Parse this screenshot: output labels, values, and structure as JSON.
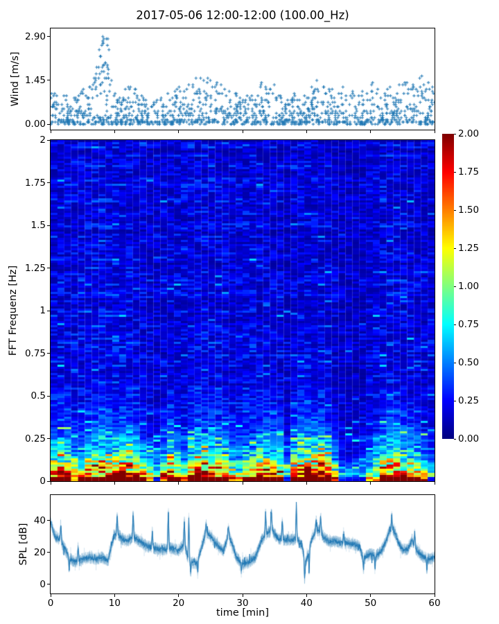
{
  "title": "2017-05-06 12:00-12:00 (100.00_Hz)",
  "colors": {
    "series": "#1f77b4",
    "background": "#ffffff",
    "axis": "#000000"
  },
  "chart_data": [
    {
      "type": "scatter",
      "name": "wind",
      "ylabel": "Wind [m/s]",
      "marker": "plus",
      "color": "#1f77b4",
      "xlim": [
        0,
        60
      ],
      "ylim": [
        -0.18,
        3.17
      ],
      "ytick_labels": [
        "2.90",
        "1.45",
        "0.00"
      ],
      "ytick_values": [
        2.9,
        1.45,
        0.0
      ],
      "xtick_values": [
        0,
        10,
        20,
        30,
        40,
        50,
        60
      ],
      "n_points": 1400,
      "quantum": 0.0725,
      "peak": {
        "time_min": 8.2,
        "value": 2.9
      },
      "envelope": [
        [
          0,
          1.3
        ],
        [
          1,
          1.0
        ],
        [
          2,
          1.2
        ],
        [
          3,
          0.9
        ],
        [
          4,
          1.0
        ],
        [
          5,
          1.1
        ],
        [
          6,
          1.3
        ],
        [
          7,
          1.6
        ],
        [
          7.5,
          2.2
        ],
        [
          8,
          2.9
        ],
        [
          8.5,
          2.6
        ],
        [
          9,
          2.0
        ],
        [
          9.5,
          1.5
        ],
        [
          10,
          1.2
        ],
        [
          11,
          1.0
        ],
        [
          12,
          1.3
        ],
        [
          13,
          1.2
        ],
        [
          14,
          1.0
        ],
        [
          15,
          0.8
        ],
        [
          16,
          0.9
        ],
        [
          17,
          0.8
        ],
        [
          18,
          1.0
        ],
        [
          19,
          1.1
        ],
        [
          20,
          1.3
        ],
        [
          21,
          1.2
        ],
        [
          22,
          1.4
        ],
        [
          23,
          1.5
        ],
        [
          24,
          1.6
        ],
        [
          25,
          1.4
        ],
        [
          26,
          1.6
        ],
        [
          27,
          1.3
        ],
        [
          28,
          1.5
        ],
        [
          29,
          1.0
        ],
        [
          30,
          0.9
        ],
        [
          31,
          1.2
        ],
        [
          32,
          1.1
        ],
        [
          33,
          1.4
        ],
        [
          34,
          1.1
        ],
        [
          35,
          1.3
        ],
        [
          36,
          0.9
        ],
        [
          37,
          0.8
        ],
        [
          38,
          1.0
        ],
        [
          39,
          0.9
        ],
        [
          40,
          1.1
        ],
        [
          41,
          1.3
        ],
        [
          42,
          1.5
        ],
        [
          43,
          1.4
        ],
        [
          44,
          1.2
        ],
        [
          45,
          1.0
        ],
        [
          46,
          1.3
        ],
        [
          47,
          1.1
        ],
        [
          48,
          0.9
        ],
        [
          49,
          1.1
        ],
        [
          50,
          1.5
        ],
        [
          51,
          1.3
        ],
        [
          52,
          1.2
        ],
        [
          53,
          1.3
        ],
        [
          54,
          1.4
        ],
        [
          55,
          1.6
        ],
        [
          56,
          1.5
        ],
        [
          57,
          1.2
        ],
        [
          58,
          1.7
        ],
        [
          59,
          1.4
        ],
        [
          60,
          1.3
        ]
      ]
    },
    {
      "type": "heatmap",
      "name": "spectrogram",
      "ylabel": "FFT Frequenz [Hz]",
      "colormap": "jet",
      "xlim": [
        0,
        60
      ],
      "ylim": [
        0,
        2
      ],
      "vmin": 0,
      "vmax": 2,
      "ytick_labels": [
        "2",
        "1.75",
        "1.5",
        "1.25",
        "1",
        "0.75",
        "0.5",
        "0.25",
        "0"
      ],
      "ytick_values": [
        2,
        1.75,
        1.5,
        1.25,
        1,
        0.75,
        0.5,
        0.25,
        0
      ],
      "xtick_values": [
        0,
        10,
        20,
        30,
        40,
        50,
        60
      ],
      "colorbar": {
        "tick_labels": [
          "2.00",
          "1.75",
          "1.50",
          "1.25",
          "1.00",
          "0.75",
          "0.50",
          "0.25",
          "0.00"
        ],
        "tick_values": [
          2,
          1.75,
          1.5,
          1.25,
          1,
          0.75,
          0.5,
          0.25,
          0
        ]
      },
      "grid": [
        56,
        164
      ],
      "noise_floor_range": [
        0.07,
        0.33
      ],
      "low_band_intensity": [
        [
          0,
          1.5
        ],
        [
          2,
          1.8
        ],
        [
          4,
          1.2
        ],
        [
          6,
          1.5
        ],
        [
          8,
          1.8
        ],
        [
          10,
          1.6
        ],
        [
          12,
          1.8
        ],
        [
          14,
          1.5
        ],
        [
          16,
          0.9
        ],
        [
          17,
          0.8
        ],
        [
          18,
          1.4
        ],
        [
          19,
          1.8
        ],
        [
          20,
          1.3
        ],
        [
          21,
          1.0
        ],
        [
          22,
          1.6
        ],
        [
          23,
          1.8
        ],
        [
          24,
          1.7
        ],
        [
          25,
          1.8
        ],
        [
          26,
          1.5
        ],
        [
          27,
          1.6
        ],
        [
          28,
          1.4
        ],
        [
          29,
          1.1
        ],
        [
          30,
          1.3
        ],
        [
          31,
          1.6
        ],
        [
          32,
          1.4
        ],
        [
          33,
          1.7
        ],
        [
          34,
          1.8
        ],
        [
          35,
          1.6
        ],
        [
          36,
          1.4
        ],
        [
          37,
          0.8
        ],
        [
          37.5,
          0.5
        ],
        [
          38,
          1.5
        ],
        [
          39,
          1.8
        ],
        [
          40,
          1.9
        ],
        [
          41,
          1.8
        ],
        [
          42,
          1.9
        ],
        [
          43,
          1.7
        ],
        [
          44,
          1.5
        ],
        [
          45,
          0.7
        ],
        [
          46,
          0.5
        ],
        [
          47,
          0.5
        ],
        [
          48,
          0.6
        ],
        [
          49,
          0.7
        ],
        [
          50,
          1.0
        ],
        [
          51,
          1.3
        ],
        [
          52,
          1.6
        ],
        [
          53,
          1.8
        ],
        [
          54,
          1.7
        ],
        [
          55,
          1.6
        ],
        [
          56,
          1.4
        ],
        [
          57,
          1.5
        ],
        [
          58,
          1.2
        ],
        [
          59,
          0.9
        ],
        [
          60,
          0.8
        ]
      ],
      "column_brightness": [
        [
          0,
          1.0
        ],
        [
          8,
          1.15
        ],
        [
          12,
          1.1
        ],
        [
          16,
          0.9
        ],
        [
          20,
          1.0
        ],
        [
          24,
          1.1
        ],
        [
          28,
          1.0
        ],
        [
          32,
          1.05
        ],
        [
          36,
          0.95
        ],
        [
          37.5,
          0.7
        ],
        [
          38,
          0.95
        ],
        [
          40,
          1.0
        ],
        [
          44,
          0.95
        ],
        [
          45,
          0.8
        ],
        [
          47,
          0.75
        ],
        [
          49,
          0.8
        ],
        [
          50,
          0.95
        ],
        [
          53,
          1.1
        ],
        [
          56,
          1.0
        ],
        [
          58,
          0.95
        ],
        [
          60,
          0.9
        ]
      ]
    },
    {
      "type": "line",
      "name": "spl",
      "ylabel": "SPL [dB]",
      "xlabel": "time [min]",
      "color": "#1f77b4",
      "xlim": [
        0,
        60
      ],
      "ylim": [
        -5.7,
        56.1
      ],
      "ytick_labels": [
        "40",
        "20",
        "0"
      ],
      "ytick_values": [
        40,
        20,
        0
      ],
      "xtick_labels": [
        "0",
        "10",
        "20",
        "30",
        "40",
        "50",
        "60"
      ],
      "xtick_values": [
        0,
        10,
        20,
        30,
        40,
        50,
        60
      ],
      "noise_amplitude": 2.6,
      "anchors": [
        [
          0,
          39
        ],
        [
          0.7,
          30
        ],
        [
          1.5,
          28
        ],
        [
          2,
          24
        ],
        [
          3,
          16
        ],
        [
          4,
          14
        ],
        [
          5,
          16
        ],
        [
          6,
          17
        ],
        [
          7,
          16
        ],
        [
          8,
          17
        ],
        [
          9,
          15
        ],
        [
          9.6,
          26
        ],
        [
          10,
          31
        ],
        [
          10.5,
          32
        ],
        [
          11,
          29
        ],
        [
          12,
          27
        ],
        [
          13,
          30
        ],
        [
          14,
          27
        ],
        [
          15,
          24
        ],
        [
          16,
          23
        ],
        [
          17,
          22
        ],
        [
          18,
          22
        ],
        [
          18.7,
          23
        ],
        [
          19.5,
          22
        ],
        [
          20,
          21
        ],
        [
          20.9,
          26
        ],
        [
          21.5,
          16
        ],
        [
          22,
          14
        ],
        [
          22.8,
          13
        ],
        [
          23.5,
          22
        ],
        [
          24.3,
          33
        ],
        [
          25,
          30
        ],
        [
          26,
          25
        ],
        [
          27,
          21
        ],
        [
          27.8,
          31
        ],
        [
          28.5,
          24
        ],
        [
          29,
          17
        ],
        [
          30,
          13
        ],
        [
          31,
          14
        ],
        [
          32,
          17
        ],
        [
          33,
          28
        ],
        [
          34,
          33
        ],
        [
          34.6,
          34
        ],
        [
          35.5,
          29
        ],
        [
          36.5,
          28
        ],
        [
          37,
          28
        ],
        [
          38,
          28
        ],
        [
          38.5,
          29
        ],
        [
          39.3,
          24
        ],
        [
          39.8,
          13
        ],
        [
          40.2,
          18
        ],
        [
          40.8,
          28
        ],
        [
          41.5,
          34
        ],
        [
          42,
          34
        ],
        [
          42.8,
          29
        ],
        [
          43.5,
          27
        ],
        [
          44.5,
          27
        ],
        [
          45.5,
          26
        ],
        [
          46.5,
          26
        ],
        [
          47.5,
          25
        ],
        [
          48.3,
          24
        ],
        [
          48.8,
          16
        ],
        [
          49.5,
          18
        ],
        [
          50,
          19
        ],
        [
          50.8,
          18
        ],
        [
          51.5,
          20
        ],
        [
          52.3,
          26
        ],
        [
          53,
          34
        ],
        [
          53.5,
          35
        ],
        [
          54,
          30
        ],
        [
          54.5,
          25
        ],
        [
          55,
          22
        ],
        [
          55.8,
          22
        ],
        [
          56.5,
          28
        ],
        [
          57,
          23
        ],
        [
          57.5,
          20
        ],
        [
          58,
          18
        ],
        [
          59,
          16
        ],
        [
          60,
          17
        ]
      ],
      "spikes_up": [
        [
          1.6,
          37
        ],
        [
          4.3,
          24
        ],
        [
          10.4,
          44
        ],
        [
          12.9,
          46
        ],
        [
          15.9,
          34
        ],
        [
          18.4,
          47
        ],
        [
          20.9,
          40
        ],
        [
          21.6,
          41
        ],
        [
          24.3,
          38
        ],
        [
          27.8,
          36
        ],
        [
          33.6,
          45
        ],
        [
          34.5,
          47
        ],
        [
          36.2,
          40
        ],
        [
          38.4,
          48
        ],
        [
          41.5,
          41
        ],
        [
          42.2,
          43
        ],
        [
          45.8,
          33
        ],
        [
          53.3,
          43
        ],
        [
          56.9,
          33
        ]
      ],
      "spikes_down": [
        [
          2.9,
          8
        ],
        [
          21.9,
          7
        ],
        [
          23,
          6
        ],
        [
          29.8,
          7
        ],
        [
          39.7,
          3
        ],
        [
          40.4,
          6
        ],
        [
          48.9,
          9
        ],
        [
          50.7,
          8
        ],
        [
          58.8,
          9
        ]
      ]
    }
  ]
}
